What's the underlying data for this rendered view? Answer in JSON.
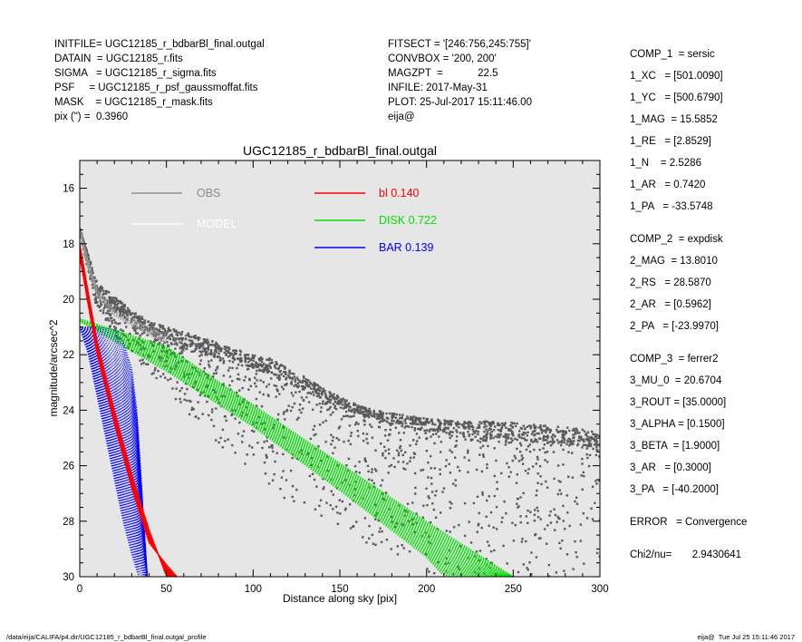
{
  "header_left": [
    "INITFILE= UGC12185_r_bdbarBl_final.outgal",
    "DATAIN  = UGC12185_r.fits",
    "SIGMA   = UGC12185_r_sigma.fits",
    "PSF     = UGC12185_r_psf_gaussmoffat.fits",
    "MASK    = UGC12185_r_mask.fits",
    "pix (\") =  0.3960"
  ],
  "header_mid": [
    "FITSECT = '[246:756,245:755]'",
    "CONVBOX = '200, 200'",
    "MAGZPT  =            22.5",
    "INFILE: 2017-May-31",
    "PLOT: 25-Jul-2017 15:11:46.00",
    "eija@"
  ],
  "header_right": [
    [
      "COMP_1  = sersic",
      "1_XC   = [501.0090]",
      "1_YC   = [500.6790]",
      "1_MAG  = 15.5852",
      "1_RE   = [2.8529]",
      "1_N    = 2.5286",
      "1_AR   = 0.7420",
      "1_PA   = -33.5748"
    ],
    [
      "COMP_2  = expdisk",
      "2_MAG  = 13.8010",
      "2_RS   = 28.5870",
      "2_AR   = [0.5962]",
      "2_PA   = [-23.9970]"
    ],
    [
      "COMP_3  = ferrer2",
      "3_MU_0  = 20.6704",
      "3_ROUT = [35.0000]",
      "3_ALPHA = [0.1500]",
      "3_BETA  = [1.9000]",
      "3_AR   = [0.3000]",
      "3_PA   = [-40.2000]"
    ],
    [
      "ERROR   = Convergence"
    ],
    [
      "Chi2/nu=       2.9430641"
    ]
  ],
  "footer_left": "/data/eija/CALIFA/p4.dir/UGC12185_r_bdbarBl_final.outgal_profile",
  "footer_right": "eija@  Tue Jul 25 15:11:46 2017",
  "chart_data": {
    "type": "scatter",
    "title": "UGC12185_r_bdbarBl_final.outgal",
    "xlabel": "Distance along sky [pix]",
    "ylabel": "magnitude/arcsec^2",
    "xlim": [
      0,
      300
    ],
    "ylim": [
      30,
      15
    ],
    "y_inverted": true,
    "x_ticks": [
      0,
      50,
      100,
      150,
      200,
      250,
      300
    ],
    "y_ticks": [
      16,
      18,
      20,
      22,
      24,
      26,
      28,
      30
    ],
    "background": "#e6e6e6",
    "legend": [
      {
        "label": "OBS",
        "color": "#808080"
      },
      {
        "label": "MODEL",
        "color": "#ffffff"
      },
      {
        "label": "bl  0.140",
        "color": "#ff0000"
      },
      {
        "label": "DISK  0.722",
        "color": "#00e000"
      },
      {
        "label": "BAR  0.139",
        "color": "#0000ff"
      }
    ],
    "series": [
      {
        "name": "OBS",
        "color": "#555555",
        "points": [
          [
            0,
            17.5
          ],
          [
            2,
            18.0
          ],
          [
            5,
            18.8
          ],
          [
            8,
            19.4
          ],
          [
            10,
            19.7
          ],
          [
            15,
            20.2
          ],
          [
            20,
            20.4
          ],
          [
            25,
            20.6
          ],
          [
            30,
            20.9
          ],
          [
            35,
            21.0
          ],
          [
            40,
            21.2
          ],
          [
            45,
            21.3
          ],
          [
            50,
            21.6
          ],
          [
            60,
            21.8
          ],
          [
            70,
            21.9
          ],
          [
            80,
            22.1
          ],
          [
            90,
            22.2
          ],
          [
            100,
            22.5
          ],
          [
            110,
            22.7
          ],
          [
            120,
            23.0
          ],
          [
            130,
            23.3
          ],
          [
            140,
            23.6
          ],
          [
            150,
            23.9
          ],
          [
            160,
            24.1
          ],
          [
            170,
            24.3
          ],
          [
            180,
            24.5
          ],
          [
            190,
            24.6
          ],
          [
            200,
            24.7
          ],
          [
            210,
            24.8
          ],
          [
            220,
            24.9
          ],
          [
            230,
            25.0
          ],
          [
            240,
            25.0
          ],
          [
            250,
            25.1
          ],
          [
            260,
            25.1
          ],
          [
            270,
            25.2
          ],
          [
            280,
            25.2
          ],
          [
            290,
            25.3
          ],
          [
            300,
            25.3
          ]
        ],
        "scatter_upper": [
          [
            0,
            17.4
          ],
          [
            10,
            19.4
          ],
          [
            20,
            19.9
          ],
          [
            30,
            20.4
          ],
          [
            40,
            20.8
          ],
          [
            50,
            21.0
          ],
          [
            60,
            21.2
          ],
          [
            70,
            21.3
          ],
          [
            80,
            21.6
          ],
          [
            90,
            21.8
          ],
          [
            100,
            22.0
          ],
          [
            110,
            22.1
          ],
          [
            120,
            22.5
          ],
          [
            130,
            22.8
          ],
          [
            140,
            23.2
          ],
          [
            150,
            23.5
          ],
          [
            160,
            23.8
          ],
          [
            170,
            24.0
          ],
          [
            180,
            24.1
          ],
          [
            190,
            24.2
          ],
          [
            200,
            24.3
          ],
          [
            220,
            24.4
          ],
          [
            240,
            24.4
          ],
          [
            260,
            24.5
          ],
          [
            280,
            24.6
          ],
          [
            300,
            24.8
          ]
        ],
        "scatter_lower": [
          [
            0,
            17.6
          ],
          [
            10,
            20.4
          ],
          [
            20,
            21.3
          ],
          [
            30,
            22.0
          ],
          [
            40,
            22.6
          ],
          [
            50,
            23.3
          ],
          [
            60,
            24.0
          ],
          [
            70,
            24.6
          ],
          [
            80,
            25.2
          ],
          [
            90,
            25.8
          ],
          [
            100,
            26.3
          ],
          [
            110,
            26.8
          ],
          [
            120,
            27.3
          ],
          [
            130,
            27.6
          ],
          [
            140,
            28.0
          ],
          [
            150,
            28.3
          ],
          [
            160,
            28.7
          ],
          [
            170,
            29.0
          ],
          [
            180,
            29.4
          ],
          [
            190,
            29.7
          ],
          [
            200,
            30.0
          ],
          [
            300,
            30.0
          ]
        ]
      },
      {
        "name": "bl  0.140",
        "color": "#ff0000",
        "inner": [
          [
            0,
            18.0
          ],
          [
            10,
            21.5
          ],
          [
            20,
            24.0
          ],
          [
            30,
            26.3
          ],
          [
            40,
            28.3
          ],
          [
            50,
            30.0
          ]
        ],
        "outer": [
          [
            0,
            18.5
          ],
          [
            10,
            22.0
          ],
          [
            20,
            24.5
          ],
          [
            30,
            26.8
          ],
          [
            40,
            28.8
          ],
          [
            56,
            30.0
          ]
        ]
      },
      {
        "name": "DISK  0.722",
        "color": "#00e000",
        "inner": [
          [
            0,
            20.8
          ],
          [
            50,
            22.6
          ],
          [
            100,
            24.6
          ],
          [
            150,
            26.9
          ],
          [
            200,
            29.3
          ],
          [
            210,
            30.0
          ]
        ],
        "outer": [
          [
            0,
            20.7
          ],
          [
            50,
            21.7
          ],
          [
            100,
            23.8
          ],
          [
            150,
            25.9
          ],
          [
            200,
            28.0
          ],
          [
            250,
            30.0
          ]
        ]
      },
      {
        "name": "BAR  0.139",
        "color": "#0000ff",
        "inner": [
          [
            0,
            21.0
          ],
          [
            5,
            22.0
          ],
          [
            10,
            23.5
          ],
          [
            15,
            25.0
          ],
          [
            20,
            26.5
          ],
          [
            25,
            28.0
          ],
          [
            30,
            29.2
          ],
          [
            34,
            30.0
          ]
        ],
        "outer": [
          [
            0,
            21.0
          ],
          [
            10,
            21.0
          ],
          [
            20,
            21.1
          ],
          [
            25,
            21.5
          ],
          [
            30,
            22.5
          ],
          [
            33,
            24.0
          ],
          [
            35,
            26.0
          ],
          [
            37,
            28.0
          ],
          [
            39,
            30.0
          ]
        ]
      }
    ]
  }
}
